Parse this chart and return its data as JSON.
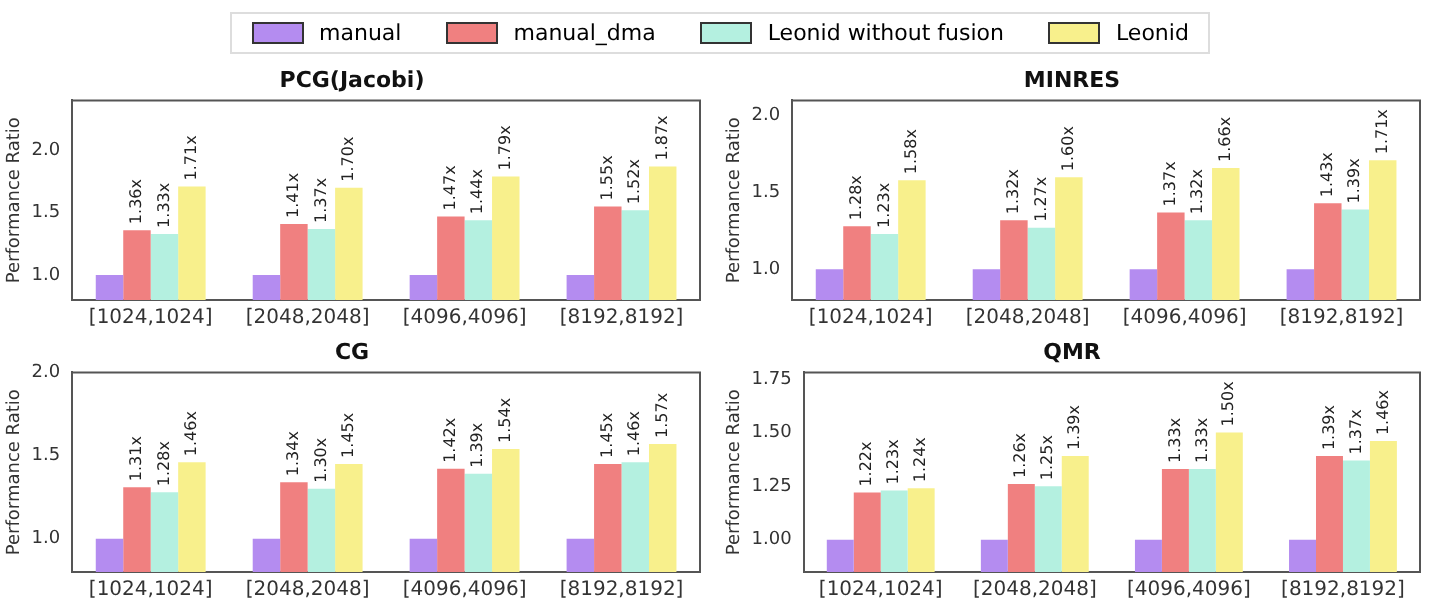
{
  "chart_data": [
    {
      "type": "bar",
      "title": "PCG(Jacobi)",
      "ylabel": "Performance Ratio",
      "categories": [
        "[1024,1024]",
        "[2048,2048]",
        "[4096,4096]",
        "[8192,8192]"
      ],
      "series": [
        {
          "name": "manual",
          "color": "#b48cf0",
          "values": [
            1.0,
            1.0,
            1.0,
            1.0
          ],
          "value_labels": [
            null,
            null,
            null,
            null
          ]
        },
        {
          "name": "manual_dma",
          "color": "#f08080",
          "values": [
            1.36,
            1.41,
            1.47,
            1.55
          ],
          "value_labels": [
            "1.36x",
            "1.41x",
            "1.47x",
            "1.55x"
          ]
        },
        {
          "name": "Leonid without fusion",
          "color": "#b4f0e0",
          "values": [
            1.33,
            1.37,
            1.44,
            1.52
          ],
          "value_labels": [
            "1.33x",
            "1.37x",
            "1.44x",
            "1.52x"
          ]
        },
        {
          "name": "Leonid",
          "color": "#f8f08c",
          "values": [
            1.71,
            1.7,
            1.79,
            1.87
          ],
          "value_labels": [
            "1.71x",
            "1.70x",
            "1.79x",
            "1.87x"
          ]
        }
      ],
      "ylim": [
        0.8,
        2.4
      ],
      "yticks": [
        {
          "value": 1,
          "label": "1.0"
        },
        {
          "value": 1.5,
          "label": "1.5"
        },
        {
          "value": 2,
          "label": "2.0"
        }
      ],
      "legend": "top"
    },
    {
      "type": "bar",
      "title": "MINRES",
      "ylabel": "Performance Ratio",
      "categories": [
        "[1024,1024]",
        "[2048,2048]",
        "[4096,4096]",
        "[8192,8192]"
      ],
      "series": [
        {
          "name": "manual",
          "color": "#b48cf0",
          "values": [
            1.0,
            1.0,
            1.0,
            1.0
          ],
          "value_labels": [
            null,
            null,
            null,
            null
          ]
        },
        {
          "name": "manual_dma",
          "color": "#f08080",
          "values": [
            1.28,
            1.32,
            1.37,
            1.43
          ],
          "value_labels": [
            "1.28x",
            "1.32x",
            "1.37x",
            "1.43x"
          ]
        },
        {
          "name": "Leonid without fusion",
          "color": "#b4f0e0",
          "values": [
            1.23,
            1.27,
            1.32,
            1.39
          ],
          "value_labels": [
            "1.23x",
            "1.27x",
            "1.32x",
            "1.39x"
          ]
        },
        {
          "name": "Leonid",
          "color": "#f8f08c",
          "values": [
            1.58,
            1.6,
            1.66,
            1.71
          ],
          "value_labels": [
            "1.58x",
            "1.60x",
            "1.66x",
            "1.71x"
          ]
        }
      ],
      "ylim": [
        0.8,
        2.1
      ],
      "yticks": [
        {
          "value": 1,
          "label": "1.0"
        },
        {
          "value": 1.5,
          "label": "1.5"
        },
        {
          "value": 2,
          "label": "2.0"
        }
      ]
    },
    {
      "type": "bar",
      "title": "CG",
      "ylabel": "Performance Ratio",
      "categories": [
        "[1024,1024]",
        "[2048,2048]",
        "[4096,4096]",
        "[8192,8192]"
      ],
      "series": [
        {
          "name": "manual",
          "color": "#b48cf0",
          "values": [
            1.0,
            1.0,
            1.0,
            1.0
          ],
          "value_labels": [
            null,
            null,
            null,
            null
          ]
        },
        {
          "name": "manual_dma",
          "color": "#f08080",
          "values": [
            1.31,
            1.34,
            1.42,
            1.45
          ],
          "value_labels": [
            "1.31x",
            "1.34x",
            "1.42x",
            "1.45x"
          ]
        },
        {
          "name": "Leonid without fusion",
          "color": "#b4f0e0",
          "values": [
            1.28,
            1.3,
            1.39,
            1.46
          ],
          "value_labels": [
            "1.28x",
            "1.30x",
            "1.39x",
            "1.46x"
          ]
        },
        {
          "name": "Leonid",
          "color": "#f8f08c",
          "values": [
            1.46,
            1.45,
            1.54,
            1.57
          ],
          "value_labels": [
            "1.46x",
            "1.45x",
            "1.54x",
            "1.57x"
          ]
        }
      ],
      "ylim": [
        0.8,
        2.0
      ],
      "yticks": [
        {
          "value": 1,
          "label": "1.0"
        },
        {
          "value": 1.5,
          "label": "1.5"
        },
        {
          "value": 2,
          "label": "2.0"
        }
      ]
    },
    {
      "type": "bar",
      "title": "QMR",
      "ylabel": "Performance Ratio",
      "categories": [
        "[1024,1024]",
        "[2048,2048]",
        "[4096,4096]",
        "[8192,8192]"
      ],
      "series": [
        {
          "name": "manual",
          "color": "#b48cf0",
          "values": [
            1.0,
            1.0,
            1.0,
            1.0
          ],
          "value_labels": [
            null,
            null,
            null,
            null
          ]
        },
        {
          "name": "manual_dma",
          "color": "#f08080",
          "values": [
            1.22,
            1.26,
            1.33,
            1.39
          ],
          "value_labels": [
            "1.22x",
            "1.26x",
            "1.33x",
            "1.39x"
          ]
        },
        {
          "name": "Leonid without fusion",
          "color": "#b4f0e0",
          "values": [
            1.23,
            1.25,
            1.33,
            1.37
          ],
          "value_labels": [
            "1.23x",
            "1.25x",
            "1.33x",
            "1.37x"
          ]
        },
        {
          "name": "Leonid",
          "color": "#f8f08c",
          "values": [
            1.24,
            1.39,
            1.5,
            1.46
          ],
          "value_labels": [
            "1.24x",
            "1.39x",
            "1.50x",
            "1.46x"
          ]
        }
      ],
      "ylim": [
        0.85,
        1.78
      ],
      "yticks": [
        {
          "value": 1,
          "label": "1.00"
        },
        {
          "value": 1.25,
          "label": "1.25"
        },
        {
          "value": 1.5,
          "label": "1.50"
        },
        {
          "value": 1.75,
          "label": "1.75"
        }
      ]
    }
  ]
}
